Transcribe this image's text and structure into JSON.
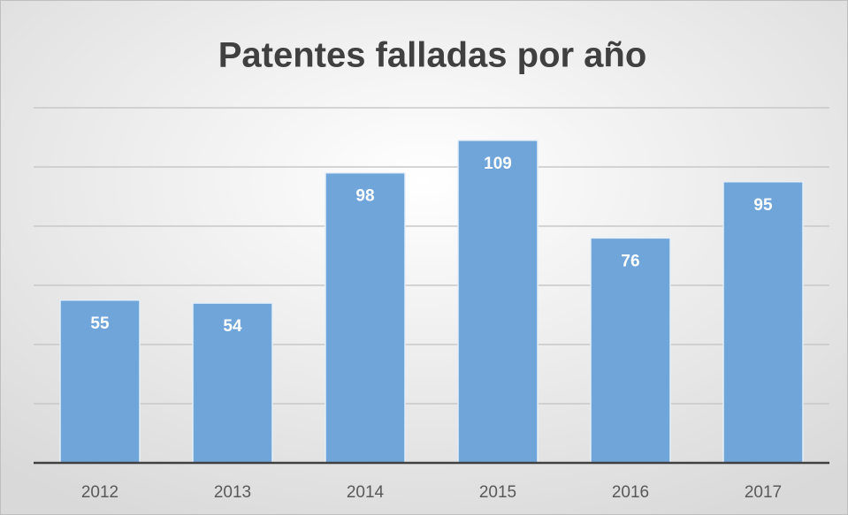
{
  "chart_data": {
    "type": "bar",
    "title": "Patentes falladas por año",
    "categories": [
      "2012",
      "2013",
      "2014",
      "2015",
      "2016",
      "2017"
    ],
    "values": [
      55,
      54,
      98,
      109,
      76,
      95
    ],
    "color": "#6fa5d9",
    "ylim": [
      0,
      120
    ],
    "yticks": [
      0,
      20,
      40,
      60,
      80,
      100,
      120
    ],
    "grid": true
  }
}
